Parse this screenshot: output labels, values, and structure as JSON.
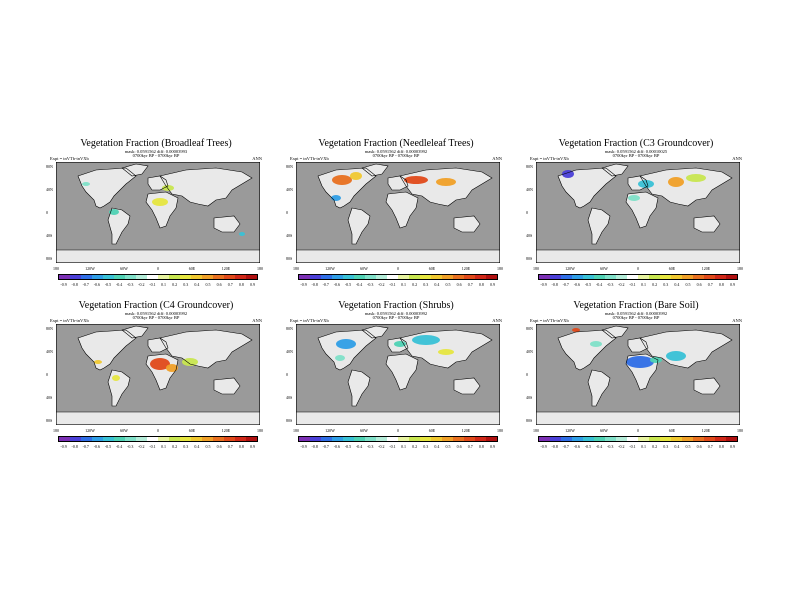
{
  "colorbar_colors": [
    "#7b2fb5",
    "#4b3fd8",
    "#2f6ee6",
    "#2f9ee6",
    "#39c1d6",
    "#4fd2b4",
    "#7fe0c8",
    "#b4ecd8",
    "#ffffff",
    "#e8f4a0",
    "#c8e650",
    "#e6e640",
    "#f0c830",
    "#f0a028",
    "#e87020",
    "#e04a1a",
    "#d02818",
    "#b01010"
  ],
  "colors": {
    "ocean": "#9a9a9a",
    "land": "#e9e9e9",
    "coast": "#000000"
  },
  "lon_ticks": [
    "180",
    "120W",
    "60W",
    "0",
    "60E",
    "120E",
    "180"
  ],
  "lat_ticks": [
    "80N",
    "40N",
    "0",
    "40S",
    "80S"
  ],
  "cbar_full": [
    "-0.9",
    "-0.8",
    "-0.7",
    "-0.6",
    "-0.5",
    "-0.4",
    "-0.3",
    "-0.2",
    "-0.1",
    "0.1",
    "0.2",
    "0.3",
    "0.4",
    "0.5",
    "0.6",
    "0.7",
    "0.8",
    "0.9"
  ],
  "panels": [
    {
      "title": "Vegetation Fraction (Broadleaf Trees)",
      "sub1": "mask: 0.0591562 diff: 0.00003993",
      "sub2": "0700kyr BP - 0700kyr BP",
      "expt": "Expt = tnVTb-tnVXb",
      "season": "ANN"
    },
    {
      "title": "Vegetation Fraction (Needleleaf Trees)",
      "sub1": "mask: 0.0591562 diff: 0.00003992",
      "sub2": "0700kyr BP - 0700kyr BP",
      "expt": "Expt = tnVTb-tnVXb",
      "season": "ANN"
    },
    {
      "title": "Vegetation Fraction (C3 Groundcover)",
      "sub1": "mask: 0.0591562 diff: 0.00010025",
      "sub2": "0700kyr BP - 0700kyr BP",
      "expt": "Expt = tnVTb-tnVXb",
      "season": "ANN"
    },
    {
      "title": "Vegetation Fraction (C4 Groundcover)",
      "sub1": "mask: 0.0591562 diff: 0.00003992",
      "sub2": "0700kyr BP - 0700kyr BP",
      "expt": "Expt = tnVTb-tnVXb",
      "season": "ANN"
    },
    {
      "title": "Vegetation Fraction (Shrubs)",
      "sub1": "mask: 0.0591562 diff: 0.00003992",
      "sub2": "0700kyr BP - 0700kyr BP",
      "expt": "Expt = tnVTb-tnVXb",
      "season": "ANN"
    },
    {
      "title": "Vegetation Fraction (Bare Soil)",
      "sub1": "mask: 0.0591562 diff: 0.00003992",
      "sub2": "0700kyr BP - 0700kyr BP",
      "expt": "Expt = tnVTb-tnVXb",
      "season": "ANN"
    }
  ]
}
